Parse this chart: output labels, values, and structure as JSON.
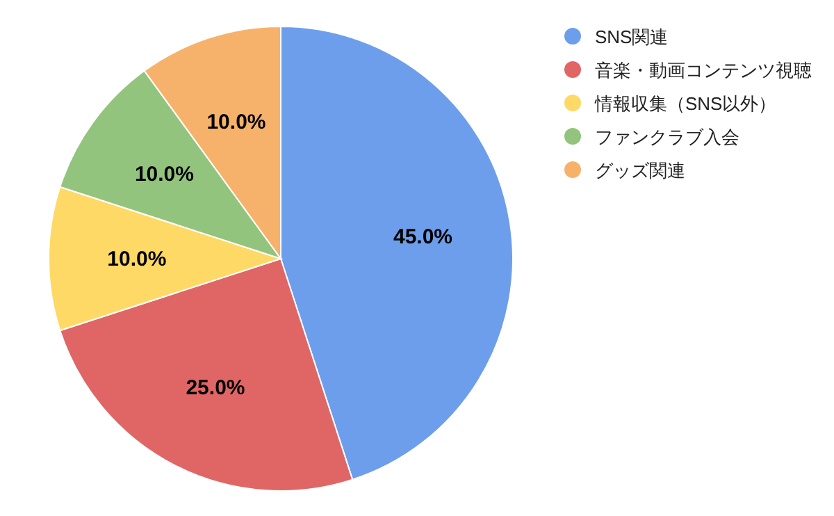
{
  "chart_data": {
    "type": "pie",
    "categories": [
      "SNS関連",
      "音楽・動画コンテンツ視聴",
      "情報収集（SNS以外）",
      "ファンクラブ入会",
      "グッズ関連"
    ],
    "values": [
      45,
      25,
      10,
      10,
      10
    ],
    "value_labels": [
      "45.0%",
      "25.0%",
      "10.0%",
      "10.0%",
      "10.0%"
    ],
    "colors": [
      "#6d9eeb",
      "#e06666",
      "#ffd966",
      "#93c47d",
      "#f6b26b"
    ],
    "legend": "right"
  }
}
